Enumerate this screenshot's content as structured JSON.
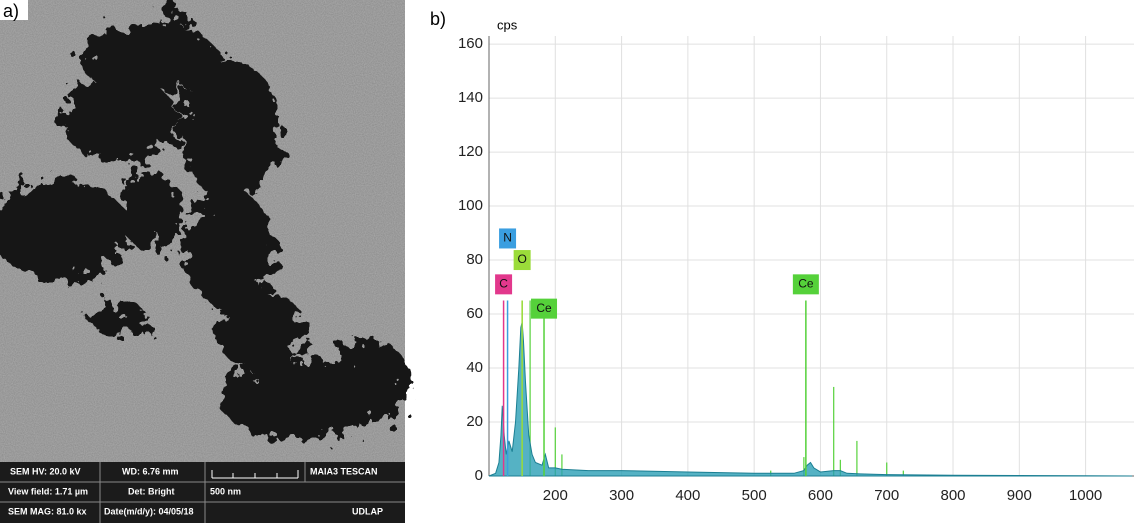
{
  "panels": {
    "a": "a)",
    "b": "b)"
  },
  "sem_info": {
    "hv": "SEM HV: 20.0 kV",
    "wd": "WD: 6.76 mm",
    "brand": "MAIA3 TESCAN",
    "view_field": "View field: 1.71 µm",
    "det": "Det: Bright",
    "scale": "500 nm",
    "mag": "SEM MAG: 81.0 kx",
    "date": "Date(m/d/y): 04/05/18",
    "lab": "UDLAP"
  },
  "chart_data": {
    "type": "area",
    "y_label": "cps",
    "color": "#2a9fb5",
    "x": [
      100,
      110,
      115,
      118,
      120,
      123,
      126,
      130,
      135,
      140,
      145,
      148,
      150,
      152,
      155,
      160,
      165,
      170,
      180,
      185,
      190,
      200,
      210,
      250,
      300,
      400,
      500,
      560,
      575,
      580,
      585,
      590,
      600,
      620,
      630,
      640,
      660,
      700,
      800,
      900,
      1000,
      1070
    ],
    "values": [
      0,
      1,
      5,
      15,
      26,
      15,
      8,
      13,
      9,
      20,
      40,
      55,
      57,
      50,
      35,
      15,
      8,
      5,
      4,
      8,
      3,
      3,
      2.5,
      2,
      2,
      1.5,
      1,
      1,
      2,
      4,
      5,
      3,
      1.5,
      2,
      2,
      1,
      0.8,
      0.5,
      0.3,
      0.2,
      0.1,
      0
    ],
    "spike_color": "#55d13a",
    "spikes": [
      {
        "x": 150,
        "y": 65
      },
      {
        "x": 162,
        "y": 65
      },
      {
        "x": 200,
        "y": 18
      },
      {
        "x": 210,
        "y": 8
      },
      {
        "x": 525,
        "y": 2
      },
      {
        "x": 575,
        "y": 7
      },
      {
        "x": 620,
        "y": 33
      },
      {
        "x": 630,
        "y": 6
      },
      {
        "x": 655,
        "y": 13
      },
      {
        "x": 700,
        "y": 5
      },
      {
        "x": 725,
        "y": 2
      }
    ],
    "elements": [
      {
        "label": "C",
        "x": 122,
        "y": 65,
        "color": "#e2388c",
        "label_y": 71
      },
      {
        "label": "N",
        "x": 128,
        "y": 65,
        "color": "#3a9ee0",
        "label_y": 88
      },
      {
        "label": "O",
        "x": 150,
        "y": 65,
        "color": "#9bdc3a",
        "label_y": 80
      },
      {
        "label": "Ce",
        "x": 183,
        "y": 65,
        "color": "#55d13a",
        "label_y": 62
      },
      {
        "label": "Ce",
        "x": 578,
        "y": 65,
        "color": "#55d13a",
        "label_y": 71
      }
    ],
    "xlim": [
      100,
      1073
    ],
    "ylim": [
      0,
      163
    ],
    "xticks": [
      200,
      300,
      400,
      500,
      600,
      700,
      800,
      900,
      1000
    ],
    "yticks": [
      0,
      20,
      40,
      60,
      80,
      100,
      120,
      140,
      160
    ],
    "grid": true
  }
}
